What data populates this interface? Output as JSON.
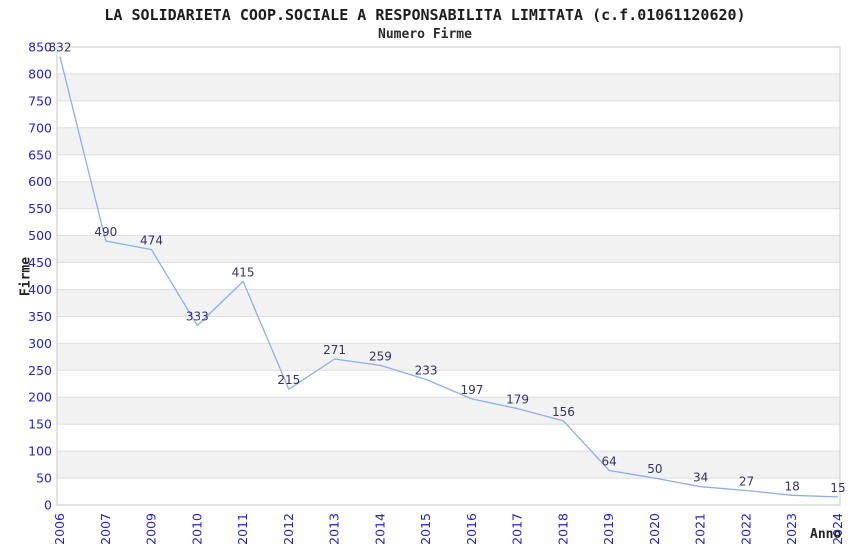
{
  "chart_data": {
    "type": "line",
    "title": "LA SOLIDARIETA COOP.SOCIALE A RESPONSABILITA LIMITATA (c.f.01061120620)",
    "subtitle": "Numero Firme",
    "xlabel": "Anno",
    "ylabel": "Firme",
    "categories": [
      "2006",
      "2007",
      "2009",
      "2010",
      "2011",
      "2012",
      "2013",
      "2014",
      "2015",
      "2016",
      "2017",
      "2018",
      "2019",
      "2020",
      "2021",
      "2022",
      "2023",
      "2024"
    ],
    "values": [
      832,
      490,
      474,
      333,
      415,
      215,
      271,
      259,
      233,
      197,
      179,
      156,
      64,
      50,
      34,
      27,
      18,
      15
    ],
    "ylim": [
      0,
      850
    ],
    "ytick_step": 50,
    "grid": "horizontal",
    "banded_background": true,
    "legend": "none",
    "point_labels_visible": true,
    "colors": {
      "line": "#8ab0ec",
      "point_label": "#333366",
      "tick_label": "#2222cc",
      "band": "#f2f2f2",
      "gridline": "#dedede",
      "frame": "#c9c9c9",
      "title": "#1c1c1c"
    }
  }
}
